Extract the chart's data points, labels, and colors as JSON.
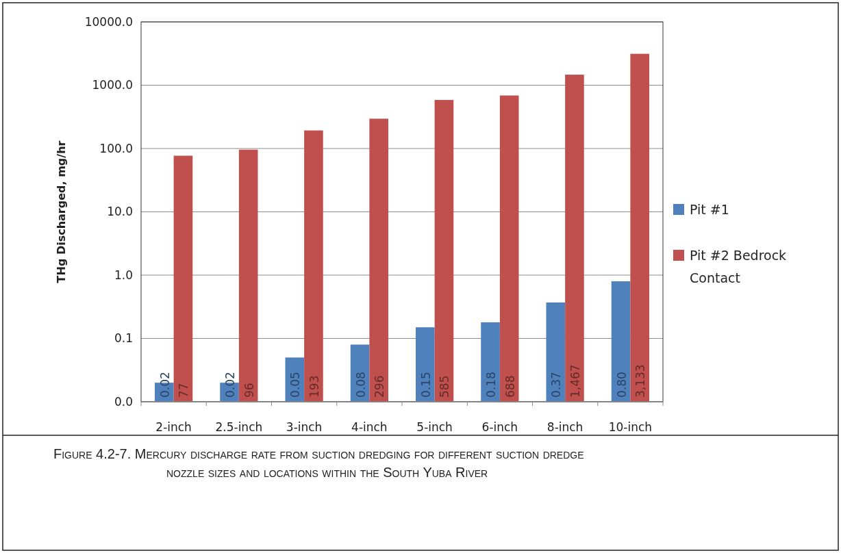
{
  "chart_data": {
    "type": "bar",
    "ylabel": "THg Discharged, mg/hr",
    "categories": [
      "2-inch",
      "2.5-inch",
      "3-inch",
      "4-inch",
      "5-inch",
      "6-inch",
      "8-inch",
      "10-inch"
    ],
    "series": [
      {
        "name": "Pit #1",
        "color": "#4f81bd",
        "values": [
          0.02,
          0.02,
          0.05,
          0.08,
          0.15,
          0.18,
          0.37,
          0.8
        ],
        "value_labels": [
          "0.02",
          "0.02",
          "0.05",
          "0.08",
          "0.15",
          "0.18",
          "0.37",
          "0.80"
        ]
      },
      {
        "name": "Pit #2 Bedrock Contact",
        "color": "#c0504d",
        "values": [
          77,
          96,
          193,
          296,
          585,
          688,
          1467,
          3133
        ],
        "value_labels": [
          "77",
          "96",
          "193",
          "296",
          "585",
          "688",
          "1,467",
          "3,133"
        ]
      }
    ],
    "log": true,
    "ylim": [
      0.01,
      10000
    ],
    "yticks": [
      {
        "value": 0.01,
        "label": "0.0"
      },
      {
        "value": 0.1,
        "label": "0.1"
      },
      {
        "value": 1,
        "label": "1.0"
      },
      {
        "value": 10,
        "label": "10.0"
      },
      {
        "value": 100,
        "label": "100.0"
      },
      {
        "value": 1000,
        "label": "1000.0"
      },
      {
        "value": 10000,
        "label": "10000.0"
      }
    ],
    "grid": "y",
    "legend": "right",
    "annotations": [
      "Figure 4.2-7. Mercury discharge rate from suction dredging for different suction dredge nozzle sizes and locations within the South Yuba River"
    ]
  }
}
